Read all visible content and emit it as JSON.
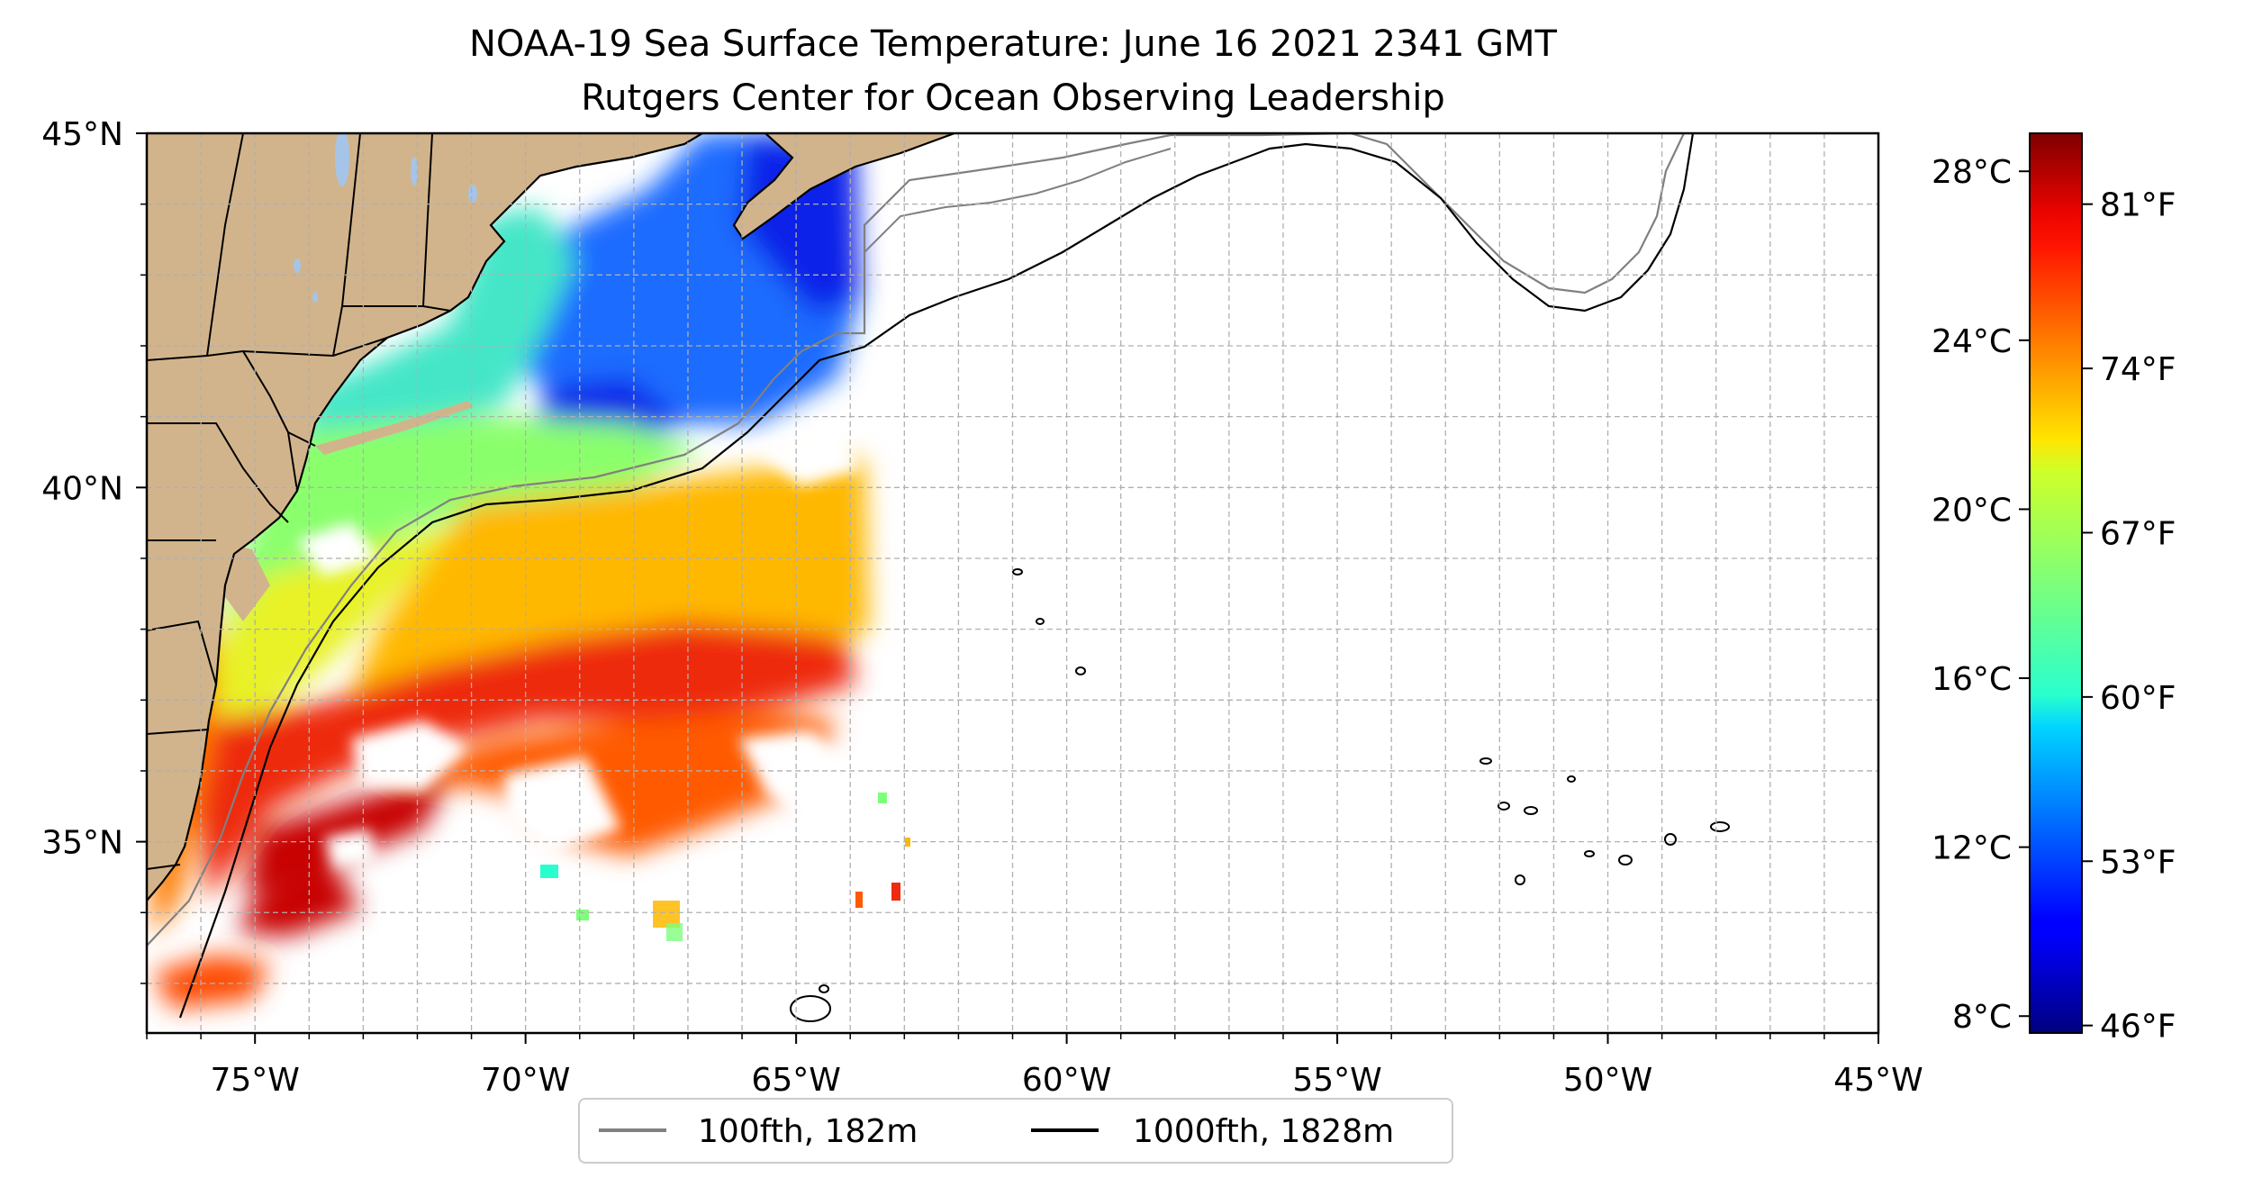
{
  "title": {
    "line1": "NOAA-19 Sea Surface Temperature: June 16 2021 2341 GMT",
    "line2": "Rutgers Center for Ocean Observing Leadership"
  },
  "map": {
    "extent": {
      "lon_min": -77,
      "lon_max": -45,
      "lat_min": 32.3,
      "lat_max": 45
    },
    "gridlines": true,
    "grid_step_lon": 1,
    "grid_step_lat": 1,
    "lon_tick_labels": [
      {
        "lon": -75,
        "label": "75°W"
      },
      {
        "lon": -70,
        "label": "70°W"
      },
      {
        "lon": -65,
        "label": "65°W"
      },
      {
        "lon": -60,
        "label": "60°W"
      },
      {
        "lon": -55,
        "label": "55°W"
      },
      {
        "lon": -50,
        "label": "50°W"
      },
      {
        "lon": -45,
        "label": "45°W"
      }
    ],
    "lat_tick_labels": [
      {
        "lat": 45,
        "label": "45°N"
      },
      {
        "lat": 40,
        "label": "40°N"
      },
      {
        "lat": 35,
        "label": "35°N"
      }
    ],
    "land_color": "#d2b48c",
    "lake_color": "#a6c4e8"
  },
  "legend": {
    "items": [
      {
        "label": "100fth, 182m",
        "color": "#808080"
      },
      {
        "label": "1000fth, 1828m",
        "color": "#000000"
      }
    ]
  },
  "colorbar": {
    "colormap": "jet",
    "range_c": [
      7.6,
      28.9
    ],
    "celsius_ticks": [
      {
        "value": 8,
        "label": "8°C"
      },
      {
        "value": 12,
        "label": "12°C"
      },
      {
        "value": 16,
        "label": "16°C"
      },
      {
        "value": 20,
        "label": "20°C"
      },
      {
        "value": 24,
        "label": "24°C"
      },
      {
        "value": 28,
        "label": "28°C"
      }
    ],
    "fahrenheit_ticks": [
      {
        "value": 46,
        "label": "46°F"
      },
      {
        "value": 53,
        "label": "53°F"
      },
      {
        "value": 60,
        "label": "60°F"
      },
      {
        "value": 67,
        "label": "67°F"
      },
      {
        "value": 74,
        "label": "74°F"
      },
      {
        "value": 81,
        "label": "81°F"
      }
    ]
  }
}
